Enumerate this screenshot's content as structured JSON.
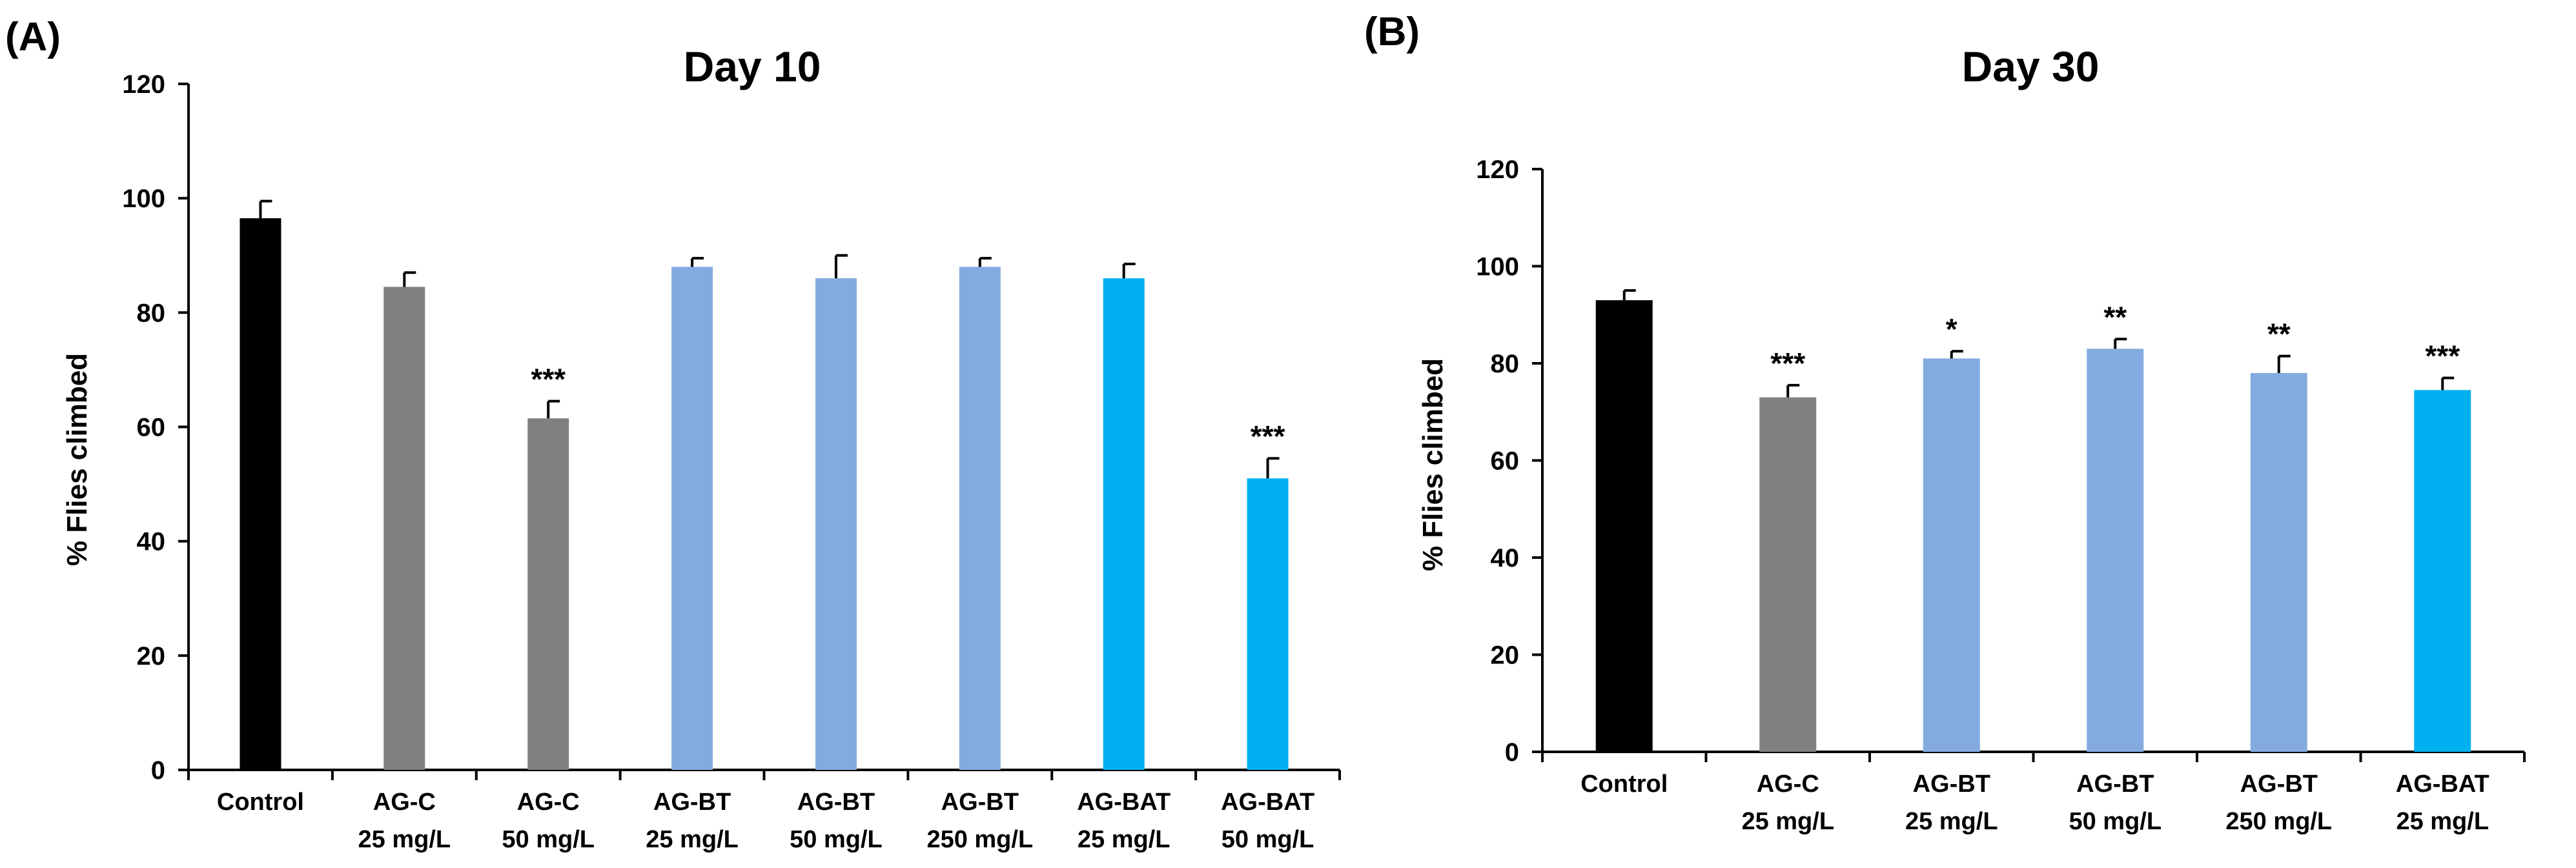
{
  "panels": [
    {
      "panel_label": "(A)",
      "chart_data": {
        "type": "bar",
        "title": "Day 10",
        "xlabel": "",
        "ylabel": "% Flies climbed",
        "ylim": [
          0,
          120
        ],
        "yticks": [
          "0",
          "20",
          "40",
          "60",
          "80",
          "100",
          "120"
        ],
        "grid": false,
        "categories": [
          {
            "line1": "Control",
            "line2": ""
          },
          {
            "line1": "AG-C",
            "line2": "25 mg/L"
          },
          {
            "line1": "AG-C",
            "line2": "50 mg/L"
          },
          {
            "line1": "AG-BT",
            "line2": "25 mg/L"
          },
          {
            "line1": "AG-BT",
            "line2": "50 mg/L"
          },
          {
            "line1": "AG-BT",
            "line2": "250 mg/L"
          },
          {
            "line1": "AG-BAT",
            "line2": "25 mg/L"
          },
          {
            "line1": "AG-BAT",
            "line2": "50 mg/L"
          }
        ],
        "values": [
          96.5,
          84.5,
          61.5,
          88,
          86,
          88,
          86,
          51
        ],
        "errors": [
          3,
          2.5,
          3,
          1.5,
          4,
          1.5,
          2.5,
          3.5
        ],
        "significance": [
          "",
          "",
          "***",
          "",
          "",
          "",
          "",
          "***"
        ],
        "colors": [
          "#000000",
          "#808080",
          "#808080",
          "#83ABDF",
          "#83ABDF",
          "#83ABDF",
          "#00B0F0",
          "#00B0F0"
        ]
      }
    },
    {
      "panel_label": "(B)",
      "chart_data": {
        "type": "bar",
        "title": "Day 30",
        "xlabel": "",
        "ylabel": "% Flies climbed",
        "ylim": [
          0,
          120
        ],
        "yticks": [
          "0",
          "20",
          "40",
          "60",
          "80",
          "100",
          "120"
        ],
        "grid": false,
        "categories": [
          {
            "line1": "Control",
            "line2": ""
          },
          {
            "line1": "AG-C",
            "line2": "25 mg/L"
          },
          {
            "line1": "AG-BT",
            "line2": "25 mg/L"
          },
          {
            "line1": "AG-BT",
            "line2": "50 mg/L"
          },
          {
            "line1": "AG-BT",
            "line2": "250 mg/L"
          },
          {
            "line1": "AG-BAT",
            "line2": "25 mg/L"
          }
        ],
        "values": [
          93,
          73,
          81,
          83,
          78,
          74.5
        ],
        "errors": [
          2,
          2.5,
          1.5,
          2,
          3.5,
          2.5
        ],
        "significance": [
          "",
          "***",
          "*",
          "**",
          "**",
          "***"
        ],
        "colors": [
          "#000000",
          "#808080",
          "#83ABDF",
          "#83ABDF",
          "#83ABDF",
          "#00B0F0"
        ]
      }
    }
  ]
}
